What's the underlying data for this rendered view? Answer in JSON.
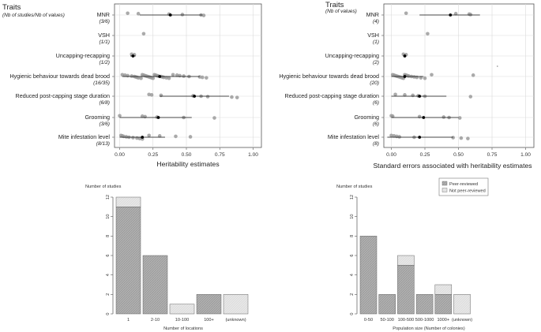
{
  "chart_data": [
    {
      "type": "scatter",
      "panel": "top-left",
      "header": "Traits",
      "subheader": "(Nb of studies/Nb of values)",
      "xlabel": "Heritability estimates",
      "xlim": [
        0,
        1
      ],
      "xticks": [
        "0.00",
        "0.25",
        "0.50",
        "0.75",
        "1.00"
      ],
      "xtick_values": [
        0,
        0.25,
        0.5,
        0.75,
        1
      ],
      "traits": [
        {
          "name": "MNR",
          "counts": "(3/6)",
          "mean": 0.38,
          "lo": 0.15,
          "hi": 0.62,
          "points": [
            0.06,
            0.14,
            0.37,
            0.47,
            0.61,
            0.63
          ]
        },
        {
          "name": "VSH",
          "counts": "(1/1)",
          "mean": null,
          "lo": null,
          "hi": null,
          "points": [
            0.18
          ]
        },
        {
          "name": "Uncapping-recapping",
          "counts": "(1/2)",
          "mean": 0.1,
          "lo": 0.08,
          "hi": 0.12,
          "points": [
            0.09,
            0.11
          ]
        },
        {
          "name": "Hygienic behaviour towards dead brood",
          "counts": "(16/35)",
          "mean": 0.3,
          "lo": 0.02,
          "hi": 0.6,
          "points": [
            0.02,
            0.04,
            0.06,
            0.09,
            0.11,
            0.12,
            0.13,
            0.14,
            0.16,
            0.17,
            0.18,
            0.19,
            0.2,
            0.21,
            0.22,
            0.23,
            0.24,
            0.25,
            0.26,
            0.27,
            0.28,
            0.29,
            0.31,
            0.32,
            0.33,
            0.35,
            0.37,
            0.4,
            0.43,
            0.45,
            0.48,
            0.52,
            0.6,
            0.62,
            0.65
          ]
        },
        {
          "name": "Reduced post-capping stage duration",
          "counts": "(6/8)",
          "mean": 0.56,
          "lo": 0.3,
          "hi": 0.82,
          "points": [
            0.22,
            0.24,
            0.31,
            0.55,
            0.61,
            0.66,
            0.84,
            0.88
          ]
        },
        {
          "name": "Grooming",
          "counts": "(3/6)",
          "mean": 0.29,
          "lo": 0.0,
          "hi": 0.54,
          "points": [
            0.0,
            0.17,
            0.19,
            0.28,
            0.48,
            0.71
          ]
        },
        {
          "name": "Mite infestation level",
          "counts": "(8/13)",
          "mean": 0.17,
          "lo": 0.0,
          "hi": 0.34,
          "points": [
            0.01,
            0.02,
            0.03,
            0.05,
            0.07,
            0.1,
            0.13,
            0.15,
            0.17,
            0.22,
            0.3,
            0.42,
            0.53
          ]
        }
      ]
    },
    {
      "type": "scatter",
      "panel": "top-right",
      "header": "Traits",
      "subheader": "(Nb of values)",
      "xlabel": "Standard errors associated with heritability estimates",
      "xlim": [
        0,
        1
      ],
      "xticks": [
        "0.00",
        "0.25",
        "0.50",
        "0.75",
        "1.00"
      ],
      "xtick_values": [
        0,
        0.25,
        0.5,
        0.75,
        1
      ],
      "stray_point": 0.79,
      "traits": [
        {
          "name": "MNR",
          "counts": "(4)",
          "mean": 0.44,
          "lo": 0.21,
          "hi": 0.66,
          "points": [
            0.11,
            0.48,
            0.58,
            0.59
          ]
        },
        {
          "name": "VSH",
          "counts": "(1)",
          "mean": null,
          "lo": null,
          "hi": null,
          "points": [
            0.27
          ]
        },
        {
          "name": "Uncapping-recapping",
          "counts": "(2)",
          "mean": 0.1,
          "lo": 0.09,
          "hi": 0.11,
          "points": [
            0.09,
            0.11
          ]
        },
        {
          "name": "Hygienic behaviour towards dead brood",
          "counts": "(20)",
          "mean": 0.1,
          "lo": 0.0,
          "hi": 0.24,
          "points": [
            0.01,
            0.02,
            0.03,
            0.04,
            0.05,
            0.06,
            0.07,
            0.08,
            0.09,
            0.1,
            0.11,
            0.12,
            0.13,
            0.15,
            0.17,
            0.19,
            0.22,
            0.25,
            0.3,
            0.61
          ]
        },
        {
          "name": "Reduced post-capping stage duration",
          "counts": "(6)",
          "mean": 0.21,
          "lo": 0.0,
          "hi": 0.41,
          "points": [
            0.03,
            0.1,
            0.16,
            0.2,
            0.25,
            0.59
          ]
        },
        {
          "name": "Grooming",
          "counts": "(6)",
          "mean": 0.24,
          "lo": 0.0,
          "hi": 0.5,
          "points": [
            0.0,
            0.01,
            0.21,
            0.39,
            0.43,
            0.51
          ]
        },
        {
          "name": "Mite infestation level",
          "counts": "(8)",
          "mean": 0.21,
          "lo": -0.03,
          "hi": 0.46,
          "points": [
            0.0,
            0.02,
            0.04,
            0.06,
            0.17,
            0.46,
            0.52,
            0.57
          ]
        }
      ]
    },
    {
      "type": "bar",
      "panel": "bottom-left",
      "stacked": true,
      "ylabel": "Number of studies",
      "xlabel": "Number of locations",
      "ylim": [
        0,
        12
      ],
      "yticks": [
        "0",
        "2",
        "4",
        "6",
        "8",
        "10",
        "12"
      ],
      "ytick_values": [
        0,
        2,
        4,
        6,
        8,
        10,
        12
      ],
      "categories": [
        "1",
        "2-10",
        "10-100",
        "100+",
        "(unknown)"
      ],
      "series": [
        {
          "name": "Peer-reviewed",
          "values": [
            11,
            6,
            0,
            2,
            0
          ],
          "color": "#b3b3b3"
        },
        {
          "name": "Not peer-reviewed",
          "values": [
            1,
            0,
            1,
            0,
            2
          ],
          "color": "#e6e6e6"
        }
      ]
    },
    {
      "type": "bar",
      "panel": "bottom-right",
      "stacked": true,
      "ylabel": "Number of studies",
      "xlabel": "Population size (Number of colonies)",
      "ylim": [
        0,
        12
      ],
      "yticks": [
        "0",
        "2",
        "4",
        "6",
        "8",
        "10",
        "12"
      ],
      "ytick_values": [
        0,
        2,
        4,
        6,
        8,
        10,
        12
      ],
      "categories": [
        "0-50",
        "50-100",
        "100-500",
        "500-1000",
        "1000+",
        "(unknown)"
      ],
      "legend": [
        "Peer-reviewed",
        "Not peer-reviewed"
      ],
      "series": [
        {
          "name": "Peer-reviewed",
          "values": [
            8,
            2,
            5,
            2,
            2,
            0
          ],
          "color": "#b3b3b3"
        },
        {
          "name": "Not peer-reviewed",
          "values": [
            0,
            0,
            1,
            0,
            1,
            2
          ],
          "color": "#e6e6e6"
        }
      ]
    }
  ]
}
